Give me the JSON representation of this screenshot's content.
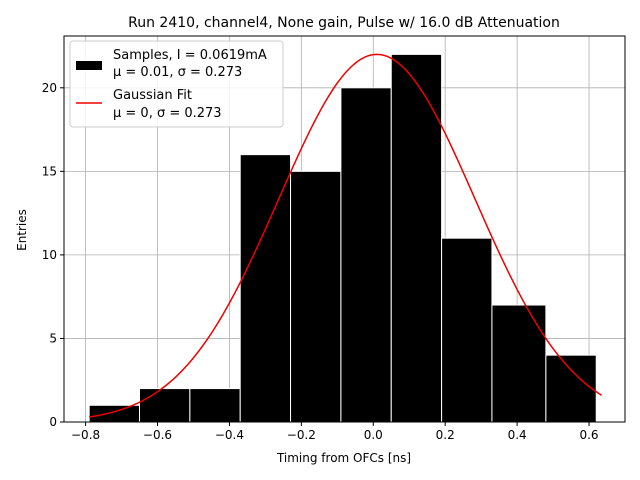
{
  "chart_data": {
    "type": "bar",
    "title": "Run 2410, channel4, None gain, Pulse w/ 16.0 dB Attenuation",
    "xlabel": "Timing from OFCs [ns]",
    "ylabel": "Entries",
    "xlim": [
      -0.86,
      0.7
    ],
    "ylim": [
      0,
      23.1
    ],
    "grid": true,
    "legend_position": "top-left",
    "xticks": [
      -0.8,
      -0.6,
      -0.4,
      -0.2,
      0.0,
      0.2,
      0.4,
      0.6
    ],
    "xtick_labels": [
      "−0.8",
      "−0.6",
      "−0.4",
      "−0.2",
      "0.0",
      "0.2",
      "0.4",
      "0.6"
    ],
    "yticks": [
      0,
      5,
      10,
      15,
      20
    ],
    "ytick_labels": [
      "0",
      "5",
      "10",
      "15",
      "20"
    ],
    "histogram": {
      "name": "Samples",
      "bin_edges": [
        -0.79,
        -0.65,
        -0.51,
        -0.37,
        -0.23,
        -0.09,
        0.05,
        0.19,
        0.33,
        0.48,
        0.62
      ],
      "values": [
        1,
        2,
        2,
        16,
        15,
        20,
        22,
        11,
        7,
        4
      ],
      "color": "#000000",
      "edgecolor": "#ffffff"
    },
    "fit": {
      "name": "Gaussian Fit",
      "type": "gaussian",
      "amplitude": 22.0,
      "mean": 0.01,
      "sigma": 0.273,
      "x_range": [
        -0.79,
        0.635
      ],
      "color": "#ee0000"
    },
    "legend": [
      {
        "kind": "patch",
        "line1": "Samples, I = 0.0619mA",
        "line2": "μ = 0.01, σ = 0.273"
      },
      {
        "kind": "line",
        "line1": "Gaussian Fit",
        "line2": "μ = 0, σ = 0.273"
      }
    ]
  }
}
